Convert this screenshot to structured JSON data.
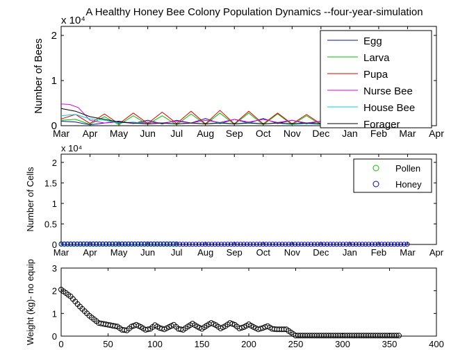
{
  "figure": {
    "title": "A Healthy Honey Bee Colony Population Dynamics --four-year-simulation"
  },
  "chart_data": [
    {
      "type": "line",
      "title": "A Healthy Honey Bee Colony Population Dynamics --four-year-simulation",
      "xlabel": "",
      "ylabel": "Number of Bees",
      "exponent_label": "x 10⁴",
      "categories": [
        "Mar",
        "Apr",
        "May",
        "Jun",
        "Jul",
        "Aug",
        "Sep",
        "Oct",
        "Nov",
        "Dec",
        "Jan",
        "Feb",
        "Mar",
        "Apr"
      ],
      "xlim": [
        0,
        13
      ],
      "ylim": [
        0,
        2.2
      ],
      "yticks": [
        0,
        1,
        2
      ],
      "grid": false,
      "legend": {
        "position": "top-right"
      },
      "series": [
        {
          "name": "Egg",
          "color": "#1010a0",
          "x": [
            0,
            0.5,
            1,
            1.5,
            2,
            2.5,
            3,
            3.5,
            4,
            4.5,
            5,
            5.5,
            6,
            6.5,
            7,
            7.5,
            8,
            8.5,
            9,
            9.5,
            10
          ],
          "y": [
            0.1,
            0.08,
            0.02,
            0.06,
            0.1,
            0.05,
            0.12,
            0.04,
            0.12,
            0.06,
            0.16,
            0.05,
            0.14,
            0.06,
            0.16,
            0.05,
            0.12,
            0.04,
            0.1,
            0.04,
            0.08
          ]
        },
        {
          "name": "Larva",
          "color": "#00c000",
          "x": [
            0,
            0.5,
            1,
            1.5,
            2,
            2.5,
            3,
            3.5,
            4,
            4.5,
            5,
            5.5,
            6,
            6.5,
            7,
            7.5,
            8,
            8.5,
            9,
            9.5,
            10
          ],
          "y": [
            0.12,
            0.14,
            0.03,
            0.2,
            0.02,
            0.22,
            0.03,
            0.22,
            0.02,
            0.26,
            0.03,
            0.28,
            0.03,
            0.28,
            0.02,
            0.26,
            0.02,
            0.22,
            0.02,
            0.15,
            0.1
          ]
        },
        {
          "name": "Pupa",
          "color": "#e00000",
          "x": [
            0,
            0.5,
            1,
            1.5,
            2,
            2.5,
            3,
            3.5,
            4,
            4.5,
            5,
            5.5,
            6,
            6.5,
            7,
            7.5,
            8,
            8.5,
            9,
            9.5,
            10
          ],
          "y": [
            0.15,
            0.25,
            0.05,
            0.26,
            0.04,
            0.28,
            0.05,
            0.3,
            0.05,
            0.32,
            0.04,
            0.34,
            0.04,
            0.32,
            0.04,
            0.28,
            0.04,
            0.25,
            0.04,
            0.18,
            0.12
          ]
        },
        {
          "name": "Nurse Bee",
          "color": "#e000e0",
          "x": [
            0,
            0.3,
            0.6,
            1,
            1.5,
            2,
            2.5,
            3,
            3.5,
            4,
            4.5,
            5,
            5.5,
            6,
            6.5,
            7,
            7.5,
            8,
            8.5,
            9,
            9.5,
            10
          ],
          "y": [
            0.48,
            0.47,
            0.4,
            0.12,
            0.06,
            0.08,
            0.05,
            0.08,
            0.06,
            0.1,
            0.06,
            0.12,
            0.07,
            0.14,
            0.08,
            0.14,
            0.07,
            0.12,
            0.06,
            0.1,
            0.05,
            0.06
          ]
        },
        {
          "name": "House Bee",
          "color": "#00d0e0",
          "x": [
            0,
            0.5,
            1,
            1.5,
            2,
            2.5,
            3,
            3.5,
            4,
            4.5,
            5,
            5.5,
            6,
            6.5,
            7,
            7.5,
            8,
            8.5,
            9,
            9.5,
            10
          ],
          "y": [
            0.22,
            0.25,
            0.15,
            0.12,
            0.06,
            0.08,
            0.04,
            0.06,
            0.04,
            0.06,
            0.04,
            0.07,
            0.04,
            0.07,
            0.04,
            0.06,
            0.03,
            0.05,
            0.03,
            0.04,
            0.03
          ]
        },
        {
          "name": "Forager",
          "color": "#000000",
          "x": [
            0,
            0.5,
            1,
            1.5,
            2,
            2.5,
            3,
            3.5,
            4,
            4.5,
            5,
            5.5,
            6,
            6.5,
            7,
            7.5,
            8,
            8.5,
            9,
            9.5,
            10
          ],
          "y": [
            0.38,
            0.32,
            0.2,
            0.14,
            0.08,
            0.06,
            0.04,
            0.06,
            0.04,
            0.06,
            0.04,
            0.06,
            0.04,
            0.06,
            0.04,
            0.06,
            0.04,
            0.06,
            0.04,
            0.05,
            0.03
          ]
        }
      ]
    },
    {
      "type": "scatter",
      "xlabel": "",
      "ylabel": "Number of Cells",
      "exponent_label": "x 10⁴",
      "categories": [
        "Mar",
        "Apr",
        "May",
        "Jun",
        "Jul",
        "Aug",
        "Sep",
        "Oct",
        "Nov",
        "Dec",
        "Jan",
        "Feb",
        "Mar",
        "Apr"
      ],
      "xlim": [
        0,
        13
      ],
      "ylim": [
        0,
        2.2
      ],
      "yticks": [
        0,
        0.5,
        1,
        1.5,
        2
      ],
      "ytick_labels": [
        "0",
        "0.5",
        "1",
        "1.5",
        "2"
      ],
      "grid": false,
      "legend": {
        "position": "top-right"
      },
      "series": [
        {
          "name": "Pollen",
          "color": "#00c000",
          "marker": "circle",
          "x_start": 0,
          "x_end": 4,
          "step": 0.111,
          "value": 0.004
        },
        {
          "name": "Honey",
          "color": "#0000c0",
          "marker": "circle",
          "x_start": 0,
          "x_end": 12,
          "step": 0.111,
          "value": 0.005,
          "value_early": 0.012
        }
      ]
    },
    {
      "type": "scatter",
      "xlabel": "",
      "ylabel": "Weight (kg)- no equip",
      "xlim": [
        0,
        400
      ],
      "xticks": [
        0,
        50,
        100,
        150,
        200,
        250,
        300,
        350,
        400
      ],
      "ylim": [
        0,
        3
      ],
      "yticks": [
        0,
        1,
        2,
        3
      ],
      "grid": false,
      "series": [
        {
          "name": "",
          "color": "#000000",
          "marker": "circle",
          "x": [
            0,
            10,
            20,
            30,
            40,
            50,
            60,
            65,
            70,
            75,
            80,
            85,
            90,
            95,
            100,
            105,
            110,
            115,
            120,
            125,
            130,
            135,
            140,
            145,
            150,
            155,
            160,
            165,
            170,
            175,
            180,
            185,
            190,
            195,
            200,
            205,
            210,
            215,
            220,
            225,
            230,
            235,
            240,
            250,
            260,
            270,
            280,
            290,
            300,
            310,
            320,
            330,
            340,
            350,
            360
          ],
          "y": [
            2.05,
            1.75,
            1.3,
            0.9,
            0.58,
            0.5,
            0.42,
            0.28,
            0.25,
            0.42,
            0.5,
            0.4,
            0.28,
            0.32,
            0.48,
            0.36,
            0.3,
            0.4,
            0.5,
            0.32,
            0.28,
            0.42,
            0.55,
            0.42,
            0.32,
            0.46,
            0.58,
            0.48,
            0.34,
            0.44,
            0.58,
            0.5,
            0.34,
            0.4,
            0.52,
            0.4,
            0.3,
            0.36,
            0.44,
            0.32,
            0.3,
            0.3,
            0.3,
            0.02,
            0.02,
            0.02,
            0.02,
            0.02,
            0.02,
            0.02,
            0.02,
            0.02,
            0.02,
            0.02,
            0.02
          ]
        }
      ]
    }
  ]
}
